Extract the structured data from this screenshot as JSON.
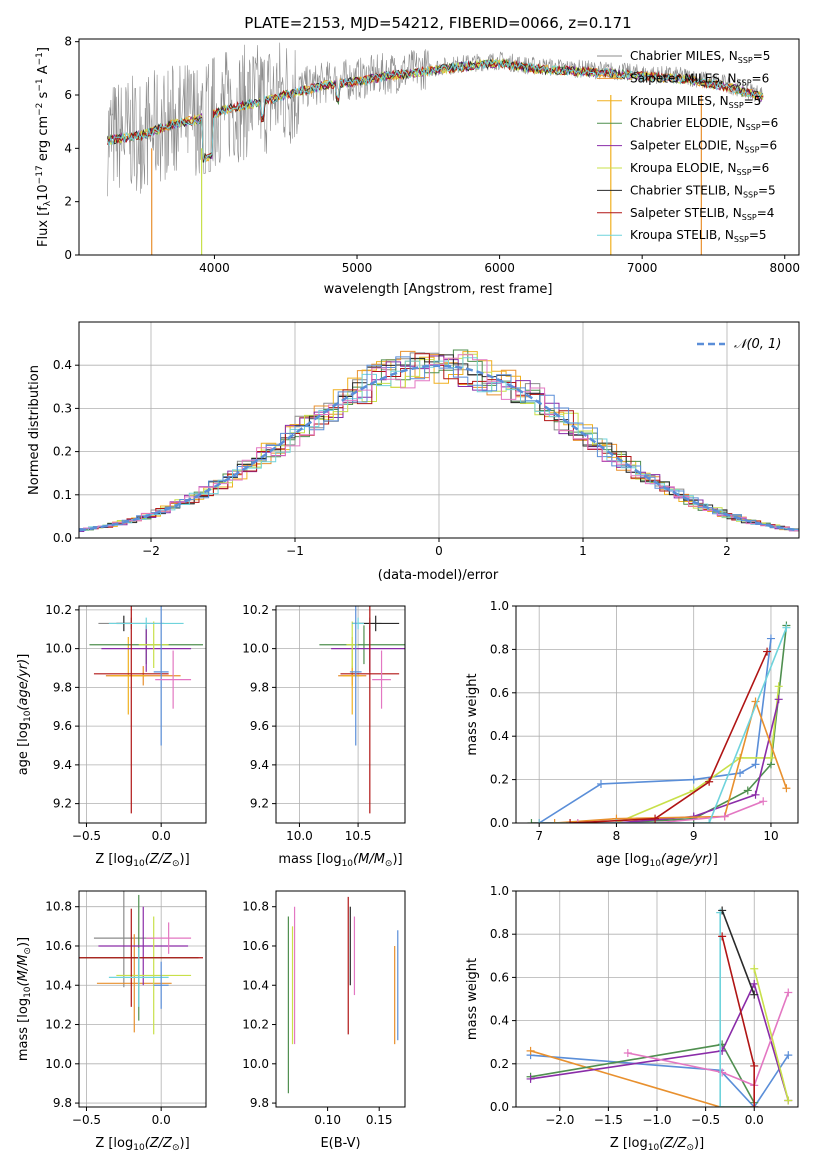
{
  "colors": {
    "c_miles": "#8c8c8c",
    "s_miles": "#e8902e",
    "k_miles": "#f0b020",
    "c_elodie": "#4f8f4f",
    "s_elodie": "#8a2ca8",
    "k_elodie": "#c8e04a",
    "c_stelib": "#2a2a2a",
    "s_stelib": "#b01515",
    "k_stelib": "#6fd3dc",
    "norm": "#5a8ed8",
    "grid": "#b0b0b0"
  },
  "chart_data": [
    {
      "type": "line",
      "title": "PLATE=2153, MJD=54212, FIBERID=0066, z=0.171",
      "xlabel": "wavelength [Angstrom, rest frame]",
      "ylabel": "Flux [f_λ10^-17 erg cm^-2 s^-1 A^-1]",
      "xlim": [
        3050,
        8100
      ],
      "ylim": [
        0,
        8.1
      ],
      "xticks": [
        "4000",
        "5000",
        "6000",
        "7000",
        "8000"
      ],
      "yticks": [
        "0",
        "2",
        "4",
        "6",
        "8"
      ],
      "legend": [
        {
          "text": "Chabrier MILES, N_SSP=5",
          "color": "#8c8c8c"
        },
        {
          "text": "Salpeter MILES, N_SSP=6",
          "color": "#e8902e"
        },
        {
          "text": "Kroupa MILES, N_SSP=5",
          "color": "#f0b020"
        },
        {
          "text": "Chabrier ELODIE, N_SSP=6",
          "color": "#4f8f4f"
        },
        {
          "text": "Salpeter ELODIE, N_SSP=6",
          "color": "#8a2ca8"
        },
        {
          "text": "Kroupa ELODIE, N_SSP=6",
          "color": "#c8e04a"
        },
        {
          "text": "Chabrier STELIB, N_SSP=5",
          "color": "#2a2a2a"
        },
        {
          "text": "Salpeter STELIB, N_SSP=4",
          "color": "#b01515"
        },
        {
          "text": "Kroupa STELIB, N_SSP=5",
          "color": "#6fd3dc"
        }
      ],
      "continuum_x": [
        3250,
        3500,
        3700,
        3900,
        4100,
        4300,
        4500,
        4800,
        5000,
        5200,
        5500,
        5800,
        6000,
        6200,
        6500,
        6800,
        7000,
        7300,
        7600,
        7850
      ],
      "continuum_y": [
        4.4,
        4.6,
        5.0,
        5.2,
        5.6,
        5.8,
        6.1,
        6.5,
        6.6,
        6.8,
        7.0,
        7.2,
        7.3,
        7.1,
        7.0,
        6.9,
        6.8,
        6.7,
        6.4,
        6.0
      ]
    },
    {
      "type": "bar",
      "xlabel": "(data-model)/error",
      "ylabel": "Normed distribution",
      "xlim": [
        -2.5,
        2.5
      ],
      "ylim": [
        0,
        0.5
      ],
      "xticks": [
        "−2",
        "−1",
        "0",
        "1",
        "2"
      ],
      "yticks": [
        "0.0",
        "0.1",
        "0.2",
        "0.3",
        "0.4"
      ],
      "legend": "N(0,1)",
      "bin_width": 0.1
    },
    {
      "type": "scatter",
      "xlabel": "Z [log10(Z/Z⊙)]",
      "ylabel": "age  [log10(age/yr)]",
      "xlim": [
        -0.55,
        0.3
      ],
      "ylim": [
        9.1,
        10.22
      ],
      "xticks": [
        "−0.5",
        "0.0"
      ],
      "yticks": [
        "9.2",
        "9.4",
        "9.6",
        "9.8",
        "10.0",
        "10.2"
      ],
      "points": [
        {
          "c": "#8c8c8c",
          "x": -0.2,
          "y": 10.13,
          "xe": 0.22,
          "ye": 0.03
        },
        {
          "c": "#e8902e",
          "x": -0.12,
          "y": 9.86,
          "xe": 0.25,
          "ye": 0.05
        },
        {
          "c": "#f0b020",
          "x": -0.22,
          "y": 9.86,
          "xe": 0.12,
          "ye": 0.2
        },
        {
          "c": "#4f8f4f",
          "x": -0.1,
          "y": 10.02,
          "xe": 0.38,
          "ye": 0.1
        },
        {
          "c": "#8a2ca8",
          "x": -0.1,
          "y": 10.0,
          "xe": 0.3,
          "ye": 0.12
        },
        {
          "c": "#c8e04a",
          "x": -0.05,
          "y": 10.02,
          "xe": 0.1,
          "ye": 0.12
        },
        {
          "c": "#2a2a2a",
          "x": -0.25,
          "y": 10.13,
          "xe": 0.05,
          "ye": 0.04
        },
        {
          "c": "#b01515",
          "x": -0.2,
          "y": 9.87,
          "xe": 0.25,
          "ye": 0.72
        },
        {
          "c": "#6fd3dc",
          "x": -0.1,
          "y": 10.13,
          "xe": 0.25,
          "ye": 0.03
        },
        {
          "c": "#5a8ed8",
          "x": 0.0,
          "y": 9.88,
          "xe": 0.05,
          "ye": 0.38
        },
        {
          "c": "#e377c2",
          "x": 0.08,
          "y": 9.84,
          "xe": 0.12,
          "ye": 0.15
        }
      ]
    },
    {
      "type": "scatter",
      "xlabel": "mass [log10(M/M⊙)]",
      "ylabel": "",
      "xlim": [
        9.8,
        10.9
      ],
      "ylim": [
        9.1,
        10.22
      ],
      "xticks": [
        "10.0",
        "10.5"
      ],
      "yticks": [
        "9.2",
        "9.4",
        "9.6",
        "9.8",
        "10.0",
        "10.2"
      ],
      "points": [
        {
          "c": "#8c8c8c",
          "x": 10.6,
          "y": 10.13,
          "xe": 0.1,
          "ye": 0.03
        },
        {
          "c": "#e8902e",
          "x": 10.45,
          "y": 9.86,
          "xe": 0.12,
          "ye": 0.05
        },
        {
          "c": "#f0b020",
          "x": 10.45,
          "y": 9.86,
          "xe": 0.08,
          "ye": 0.2
        },
        {
          "c": "#4f8f4f",
          "x": 10.55,
          "y": 10.02,
          "xe": 0.38,
          "ye": 0.1
        },
        {
          "c": "#8a2ca8",
          "x": 10.6,
          "y": 10.0,
          "xe": 0.33,
          "ye": 0.12
        },
        {
          "c": "#c8e04a",
          "x": 10.45,
          "y": 10.02,
          "xe": 0.05,
          "ye": 0.12
        },
        {
          "c": "#2a2a2a",
          "x": 10.65,
          "y": 10.13,
          "xe": 0.2,
          "ye": 0.04
        },
        {
          "c": "#b01515",
          "x": 10.6,
          "y": 9.87,
          "xe": 0.25,
          "ye": 0.72
        },
        {
          "c": "#6fd3dc",
          "x": 10.5,
          "y": 10.13,
          "xe": 0.05,
          "ye": 0.03
        },
        {
          "c": "#5a8ed8",
          "x": 10.48,
          "y": 9.88,
          "xe": 0.05,
          "ye": 0.38
        },
        {
          "c": "#e377c2",
          "x": 10.7,
          "y": 9.84,
          "xe": 0.08,
          "ye": 0.15
        }
      ]
    },
    {
      "type": "line",
      "xlabel": "age  [log10(age/yr)]",
      "ylabel": "mass weight",
      "xlim": [
        6.7,
        10.35
      ],
      "ylim": [
        0,
        1.0
      ],
      "xticks": [
        "7",
        "8",
        "9",
        "10"
      ],
      "yticks": [
        "0.0",
        "0.2",
        "0.4",
        "0.6",
        "0.8",
        "1.0"
      ],
      "series": [
        {
          "c": "#5a8ed8",
          "x": [
            7.0,
            7.8,
            9.0,
            9.6,
            9.8,
            10.0
          ],
          "y": [
            0.0,
            0.18,
            0.2,
            0.23,
            0.27,
            0.85
          ]
        },
        {
          "c": "#4f8f4f",
          "x": [
            6.9,
            8.0,
            9.0,
            9.7,
            10.0,
            10.2
          ],
          "y": [
            0.0,
            0.0,
            0.02,
            0.15,
            0.27,
            0.91
          ]
        },
        {
          "c": "#c8e04a",
          "x": [
            7.0,
            8.0,
            9.0,
            9.6,
            10.0,
            10.1
          ],
          "y": [
            0.0,
            0.0,
            0.15,
            0.3,
            0.3,
            0.63
          ]
        },
        {
          "c": "#8a2ca8",
          "x": [
            7.0,
            8.0,
            9.0,
            9.8,
            10.1
          ],
          "y": [
            0.0,
            0.0,
            0.03,
            0.13,
            0.57
          ]
        },
        {
          "c": "#e8902e",
          "x": [
            7.2,
            8.0,
            9.4,
            9.8,
            10.2
          ],
          "y": [
            0.0,
            0.02,
            0.03,
            0.56,
            0.16
          ]
        },
        {
          "c": "#e377c2",
          "x": [
            7.5,
            8.5,
            9.4,
            9.9
          ],
          "y": [
            0.0,
            0.0,
            0.03,
            0.1
          ]
        },
        {
          "c": "#6fd3dc",
          "x": [
            7.0,
            8.0,
            9.2,
            10.2
          ],
          "y": [
            0.0,
            0.0,
            0.0,
            0.9
          ]
        },
        {
          "c": "#b01515",
          "x": [
            7.4,
            8.5,
            9.2,
            9.95
          ],
          "y": [
            0.0,
            0.02,
            0.19,
            0.79
          ]
        }
      ]
    },
    {
      "type": "scatter",
      "xlabel": "Z [log10(Z/Z⊙)]",
      "ylabel": "mass [log10(M/M⊙)]",
      "xlim": [
        -0.55,
        0.3
      ],
      "ylim": [
        9.78,
        10.88
      ],
      "xticks": [
        "−0.5",
        "0.0"
      ],
      "yticks": [
        "9.8",
        "10.0",
        "10.2",
        "10.4",
        "10.6",
        "10.8"
      ],
      "points": [
        {
          "c": "#8c8c8c",
          "x": -0.25,
          "y": 10.64,
          "xe": 0.2,
          "ye": 0.25
        },
        {
          "c": "#e8902e",
          "x": -0.18,
          "y": 10.41,
          "xe": 0.25,
          "ye": 0.25
        },
        {
          "c": "#4f8f4f",
          "x": -0.15,
          "y": 10.54,
          "xe": 0.4,
          "ye": 0.32
        },
        {
          "c": "#8a2ca8",
          "x": -0.12,
          "y": 10.6,
          "xe": 0.3,
          "ye": 0.2
        },
        {
          "c": "#c8e04a",
          "x": -0.05,
          "y": 10.45,
          "xe": 0.25,
          "ye": 0.3
        },
        {
          "c": "#b01515",
          "x": -0.2,
          "y": 10.54,
          "xe": 0.48,
          "ye": 0.25
        },
        {
          "c": "#6fd3dc",
          "x": -0.15,
          "y": 10.44,
          "xe": 0.2,
          "ye": 0.15
        },
        {
          "c": "#e377c2",
          "x": 0.05,
          "y": 10.64,
          "xe": 0.15,
          "ye": 0.08
        },
        {
          "c": "#5a8ed8",
          "x": 0.0,
          "y": 10.4,
          "xe": 0.05,
          "ye": 0.12
        }
      ]
    },
    {
      "type": "scatter",
      "xlabel": "E(B-V)",
      "ylabel": "",
      "xlim": [
        0.05,
        0.175
      ],
      "ylim": [
        9.78,
        10.88
      ],
      "xticks": [
        "0.10",
        "0.15"
      ],
      "yticks": [
        "9.8",
        "10.0",
        "10.2",
        "10.4",
        "10.6",
        "10.8"
      ],
      "points": [
        {
          "c": "#4f8f4f",
          "x": 0.062,
          "y": 10.3,
          "ye": 0.45
        },
        {
          "c": "#c8e04a",
          "x": 0.066,
          "y": 10.4,
          "ye": 0.3
        },
        {
          "c": "#e377c2",
          "x": 0.068,
          "y": 10.45,
          "ye": 0.35
        },
        {
          "c": "#b01515",
          "x": 0.12,
          "y": 10.5,
          "ye": 0.35
        },
        {
          "c": "#2a2a2a",
          "x": 0.122,
          "y": 10.6,
          "ye": 0.2
        },
        {
          "c": "#e377c2",
          "x": 0.126,
          "y": 10.55,
          "ye": 0.2
        },
        {
          "c": "#e8902e",
          "x": 0.165,
          "y": 10.35,
          "ye": 0.25
        },
        {
          "c": "#5a8ed8",
          "x": 0.168,
          "y": 10.4,
          "ye": 0.28
        }
      ]
    },
    {
      "type": "line",
      "xlabel": "Z [log10(Z/Z⊙)]",
      "ylabel": "mass weight",
      "xlim": [
        -2.45,
        0.45
      ],
      "ylim": [
        0,
        1.0
      ],
      "xticks": [
        "−2.0",
        "−1.5",
        "−1.0",
        "−0.5",
        "0.0"
      ],
      "yticks": [
        "0.0",
        "0.2",
        "0.4",
        "0.6",
        "0.8",
        "1.0"
      ],
      "series": [
        {
          "c": "#5a8ed8",
          "x": [
            -2.3,
            -0.35,
            0.0,
            0.35
          ],
          "y": [
            0.24,
            0.17,
            0.0,
            0.24
          ]
        },
        {
          "c": "#e8902e",
          "x": [
            -2.3,
            -0.35,
            0.0
          ],
          "y": [
            0.26,
            0.0,
            0.0
          ]
        },
        {
          "c": "#4f8f4f",
          "x": [
            -2.3,
            -0.33,
            0.0
          ],
          "y": [
            0.14,
            0.29,
            0.02
          ]
        },
        {
          "c": "#8a2ca8",
          "x": [
            -2.3,
            -0.33,
            0.0,
            0.35
          ],
          "y": [
            0.13,
            0.26,
            0.57,
            0.03
          ]
        },
        {
          "c": "#e377c2",
          "x": [
            -1.3,
            -0.33,
            0.0,
            0.35
          ],
          "y": [
            0.25,
            0.16,
            0.1,
            0.53
          ]
        },
        {
          "c": "#c8e04a",
          "x": [
            0.0,
            0.35
          ],
          "y": [
            0.64,
            0.03
          ]
        },
        {
          "c": "#6fd3dc",
          "x": [
            -0.35,
            -0.35,
            0.0
          ],
          "y": [
            0.9,
            0.0,
            0.0
          ]
        },
        {
          "c": "#b01515",
          "x": [
            -0.33,
            0.0,
            0.0
          ],
          "y": [
            0.79,
            0.19,
            0.0
          ]
        },
        {
          "c": "#2a2a2a",
          "x": [
            -0.33,
            0.0
          ],
          "y": [
            0.91,
            0.52
          ]
        }
      ]
    }
  ]
}
